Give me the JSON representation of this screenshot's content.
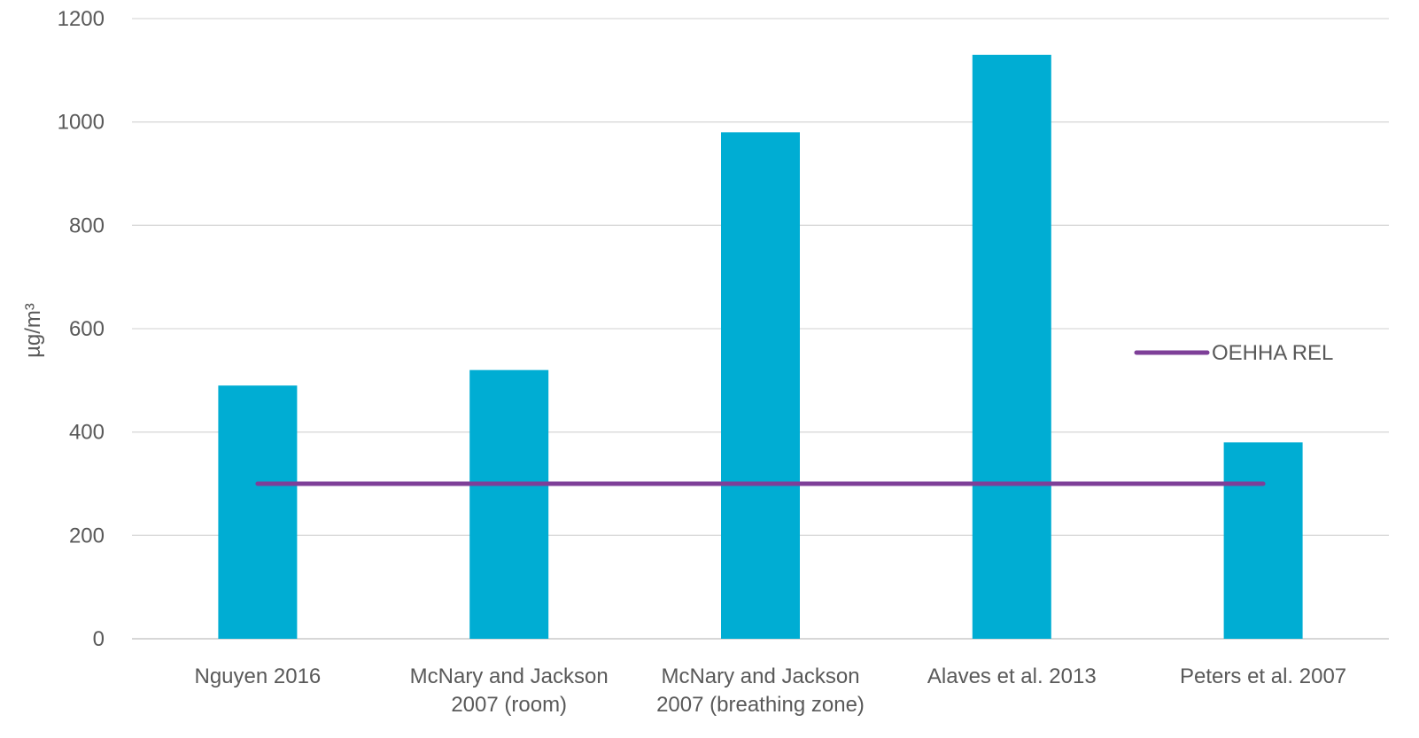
{
  "chart_data": {
    "type": "bar",
    "title": "",
    "xlabel": "",
    "ylabel": "µg/m³",
    "ylim": [
      0,
      1200
    ],
    "yticks": [
      0,
      200,
      400,
      600,
      800,
      1000,
      1200
    ],
    "grid": true,
    "legend_position": "right",
    "categories": [
      [
        "Nguyen 2016"
      ],
      [
        "McNary and Jackson",
        "2007 (room)"
      ],
      [
        "McNary and Jackson",
        "2007 (breathing zone)"
      ],
      [
        "Alaves et al. 2013"
      ],
      [
        "Peters et al. 2007"
      ]
    ],
    "series": [
      {
        "type": "bar",
        "values": [
          490,
          520,
          980,
          1130,
          380
        ],
        "color": "#00ADD3"
      },
      {
        "type": "line",
        "name": "OEHHA REL",
        "values": [
          300,
          300,
          300,
          300,
          300
        ],
        "color": "#7E3F98"
      }
    ],
    "colors": {
      "grid": "#D9D9D9",
      "axis": "#BFBFBF",
      "text": "#595959"
    }
  }
}
